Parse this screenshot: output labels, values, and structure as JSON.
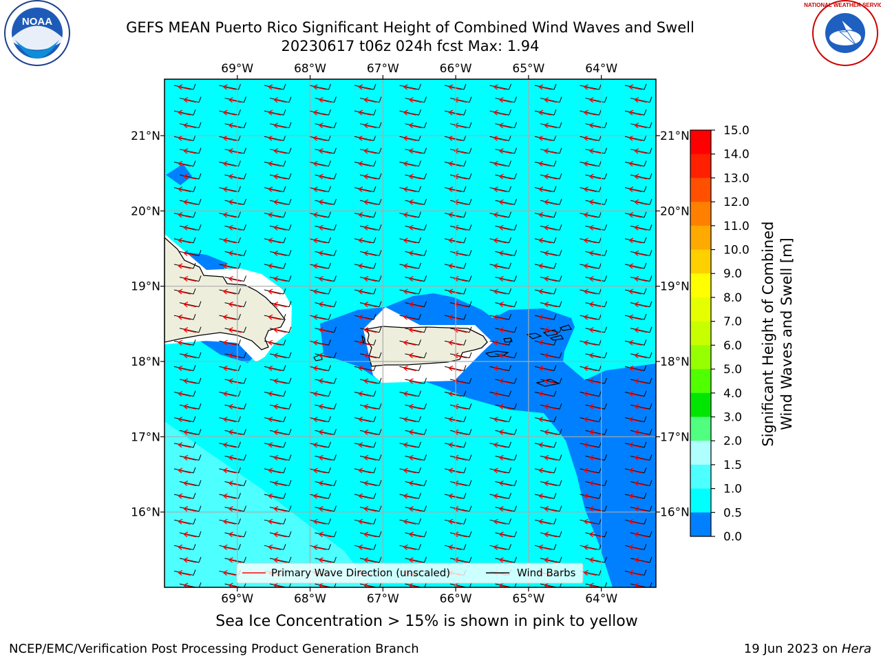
{
  "header": {
    "title_line1": "GEFS MEAN Puerto Rico Significant Height of Combined Wind Waves and Swell",
    "title_line2": "20230617 t06z 024h fcst   Max: 1.94"
  },
  "logos": {
    "left": {
      "text": "NOAA",
      "icon": "noaa-logo"
    },
    "right": {
      "text": "NATIONAL WEATHER SERVICE",
      "icon": "nws-logo"
    }
  },
  "map": {
    "lon_ticks": [
      "69°W",
      "68°W",
      "67°W",
      "66°W",
      "65°W",
      "64°W"
    ],
    "lat_ticks": [
      "21°N",
      "20°N",
      "19°N",
      "18°N",
      "17°N",
      "16°N"
    ],
    "legend": {
      "primary_wave": "Primary Wave Direction (unscaled)",
      "wind_barbs": "Wind Barbs"
    },
    "colors": {
      "ocean_main": "#00ffff",
      "ocean_light": "#4dffff",
      "ocean_deep": "#0080ff",
      "land": "#eeeedd",
      "arrows": "#ff0000",
      "barbs": "#000000"
    }
  },
  "colorbar": {
    "label_line1": "Significant Height of Combined",
    "label_line2": "Wind Waves and Swell [m]",
    "ticks": [
      "15.0",
      "14.0",
      "13.0",
      "12.0",
      "11.0",
      "10.0",
      "9.0",
      "8.0",
      "7.0",
      "6.0",
      "5.0",
      "4.0",
      "3.0",
      "2.0",
      "1.5",
      "1.0",
      "0.5",
      "0.0"
    ],
    "colors": [
      "#ff0000",
      "#ff2000",
      "#ff5000",
      "#ff8000",
      "#ffaa00",
      "#ffd000",
      "#ffff00",
      "#e6ff00",
      "#c8ff00",
      "#96ff00",
      "#50ff00",
      "#00e600",
      "#50ff80",
      "#b0ffff",
      "#4dffff",
      "#00ffff",
      "#0080ff",
      "#0000ff"
    ]
  },
  "chart_data": {
    "type": "heatmap",
    "title": "GEFS MEAN Puerto Rico Significant Height of Combined Wind Waves and Swell",
    "subtitle": "20230617 t06z 024h fcst   Max: 1.94",
    "variable": "Significant Height of Combined Wind Waves and Swell [m]",
    "max": 1.94,
    "xlim": [
      -70.0,
      -63.25
    ],
    "ylim": [
      15.0,
      21.75
    ],
    "x_ticks": [
      "69°W",
      "68°W",
      "67°W",
      "66°W",
      "65°W",
      "64°W"
    ],
    "y_ticks": [
      "21°N",
      "20°N",
      "19°N",
      "18°N",
      "17°N",
      "16°N"
    ],
    "color_levels": [
      0.0,
      0.5,
      1.0,
      1.5,
      2.0,
      3.0,
      4.0,
      5.0,
      6.0,
      7.0,
      8.0,
      9.0,
      10.0,
      11.0,
      12.0,
      13.0,
      14.0,
      15.0
    ],
    "legend": [
      "Primary Wave Direction (unscaled)",
      "Wind Barbs"
    ],
    "grid": true
  },
  "notes": {
    "sea_ice": "Sea Ice Concentration > 15% is shown in pink to yellow"
  },
  "footer": {
    "left": "NCEP/EMC/Verification Post Processing Product Generation Branch",
    "right_plain": "19 Jun 2023 on ",
    "right_italic": "Hera"
  }
}
